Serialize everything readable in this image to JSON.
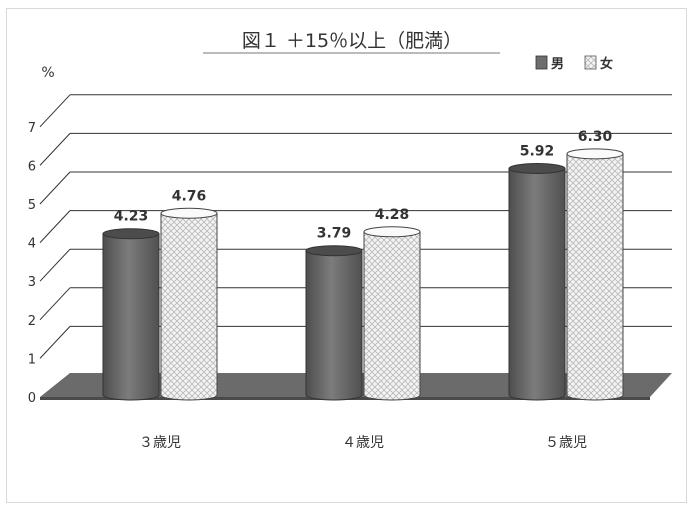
{
  "chart_data": {
    "type": "bar",
    "title": "図１ ＋15％以上（肥満）",
    "ylabel": "%",
    "xlabel": "",
    "categories": [
      "３歳児",
      "４歳児",
      "５歳児"
    ],
    "series": [
      {
        "name": "男",
        "values": [
          4.23,
          3.79,
          5.92
        ],
        "labels": [
          "4.23",
          "3.79",
          "5.92"
        ],
        "pattern": "solid-dark-gray"
      },
      {
        "name": "女",
        "values": [
          4.76,
          4.28,
          6.3
        ],
        "labels": [
          "4.76",
          "4.28",
          "6.30"
        ],
        "pattern": "light-crosshatch"
      }
    ],
    "yticks": [
      "0",
      "1",
      "2",
      "3",
      "4",
      "5",
      "6",
      "7"
    ],
    "ylim": [
      0,
      7
    ],
    "grid": true,
    "legend_position": "top-right",
    "style": "3d-cylinder"
  },
  "colors": {
    "male_fill": "#6e6e6e",
    "female_fill": "#f2f2f2",
    "floor": "#6b6b6b",
    "grid": "#333333",
    "text": "#333333"
  }
}
